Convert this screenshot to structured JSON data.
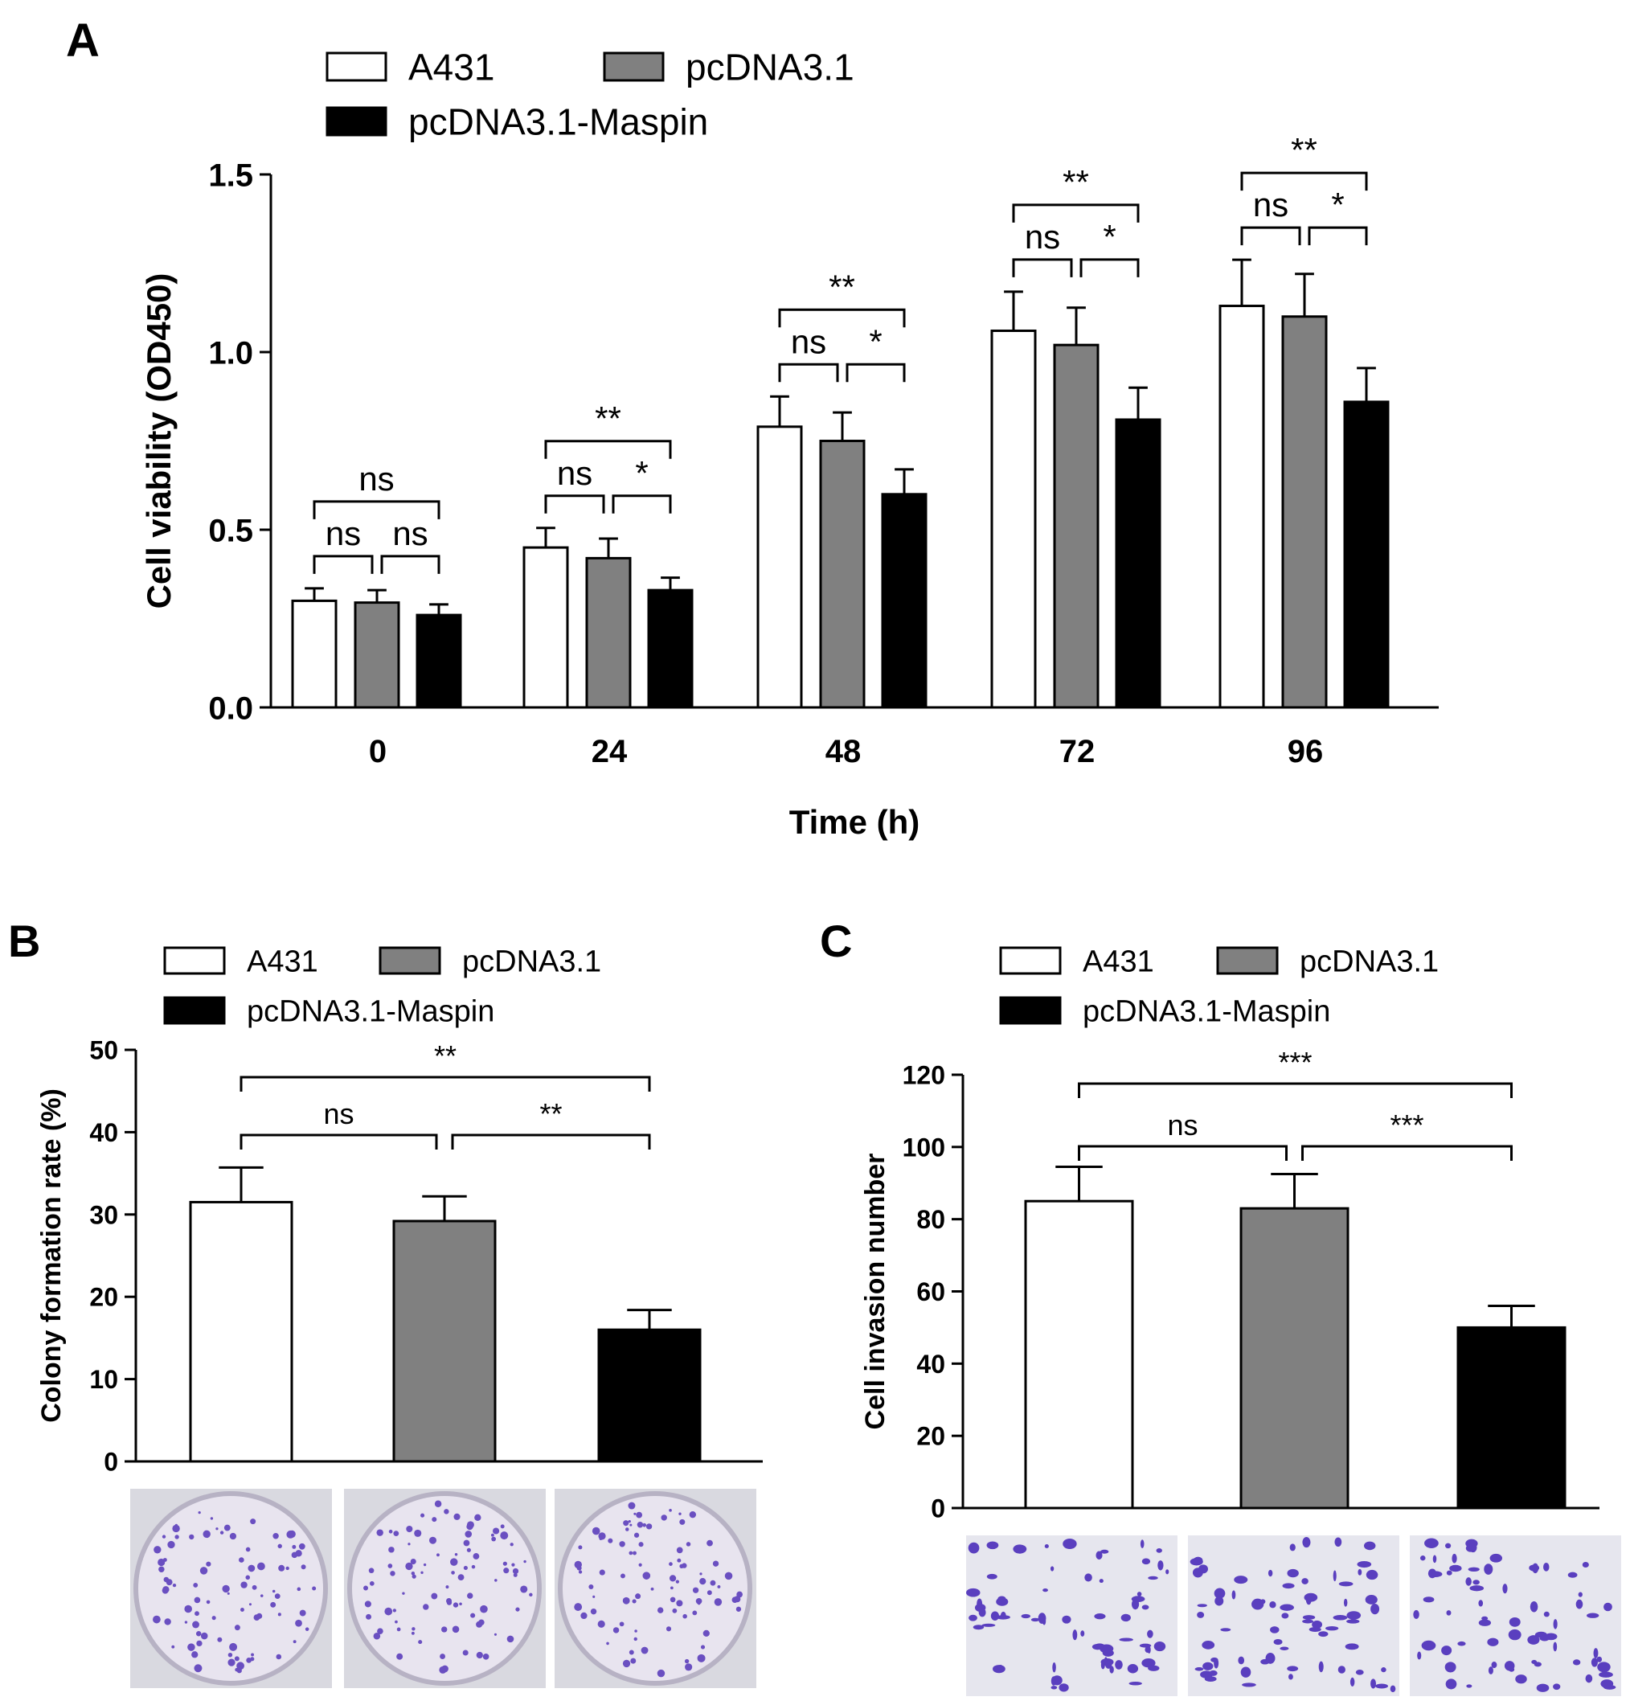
{
  "series_colors": {
    "A431": "#ffffff",
    "pcDNA3.1": "#808080",
    "pcDNA3.1-Maspin": "#000000"
  },
  "chart_data": [
    {
      "panel": "A",
      "type": "bar",
      "xlabel": "Time (h)",
      "ylabel": "Cell viability (OD450)",
      "ylim": [
        0,
        1.5
      ],
      "yticks": [
        "0.0",
        "0.5",
        "1.0",
        "1.5"
      ],
      "categories": [
        "0",
        "24",
        "48",
        "72",
        "96"
      ],
      "legend": [
        "A431",
        "pcDNA3.1",
        "pcDNA3.1-Maspin"
      ],
      "series": [
        {
          "name": "A431",
          "values": [
            0.3,
            0.45,
            0.79,
            1.06,
            1.13
          ],
          "errors": [
            0.035,
            0.055,
            0.085,
            0.11,
            0.13
          ]
        },
        {
          "name": "pcDNA3.1",
          "values": [
            0.295,
            0.42,
            0.75,
            1.02,
            1.1
          ],
          "errors": [
            0.035,
            0.055,
            0.08,
            0.105,
            0.12
          ]
        },
        {
          "name": "pcDNA3.1-Maspin",
          "values": [
            0.26,
            0.33,
            0.6,
            0.81,
            0.86
          ],
          "errors": [
            0.03,
            0.035,
            0.07,
            0.09,
            0.095
          ]
        }
      ],
      "significance": [
        {
          "group": "0",
          "pair_1_2": "ns",
          "pair_2_3": "ns",
          "pair_1_3": "ns"
        },
        {
          "group": "24",
          "pair_1_2": "ns",
          "pair_2_3": "*",
          "pair_1_3": "**"
        },
        {
          "group": "48",
          "pair_1_2": "ns",
          "pair_2_3": "*",
          "pair_1_3": "**"
        },
        {
          "group": "72",
          "pair_1_2": "ns",
          "pair_2_3": "*",
          "pair_1_3": "**"
        },
        {
          "group": "96",
          "pair_1_2": "ns",
          "pair_2_3": "*",
          "pair_1_3": "**"
        }
      ]
    },
    {
      "panel": "B",
      "type": "bar",
      "ylabel": "Colony formation rate (%)",
      "ylim": [
        0,
        50
      ],
      "yticks": [
        "0",
        "10",
        "20",
        "30",
        "40",
        "50"
      ],
      "categories": [
        "A431",
        "pcDNA3.1",
        "pcDNA3.1-Maspin"
      ],
      "legend": [
        "A431",
        "pcDNA3.1",
        "pcDNA3.1-Maspin"
      ],
      "values": [
        31.5,
        29.2,
        16.0
      ],
      "errors": [
        4.2,
        3.0,
        2.4
      ],
      "significance": {
        "pair_1_2": "ns",
        "pair_2_3": "**",
        "pair_1_3": "**"
      }
    },
    {
      "panel": "C",
      "type": "bar",
      "ylabel": "Cell invasion number",
      "ylim": [
        0,
        120
      ],
      "yticks": [
        "0",
        "20",
        "40",
        "60",
        "80",
        "100",
        "120"
      ],
      "categories": [
        "A431",
        "pcDNA3.1",
        "pcDNA3.1-Maspin"
      ],
      "legend": [
        "A431",
        "pcDNA3.1",
        "pcDNA3.1-Maspin"
      ],
      "values": [
        85,
        83,
        50
      ],
      "errors": [
        9.5,
        9.5,
        6.0
      ],
      "significance": {
        "pair_1_2": "ns",
        "pair_2_3": "***",
        "pair_1_3": "***"
      }
    }
  ]
}
